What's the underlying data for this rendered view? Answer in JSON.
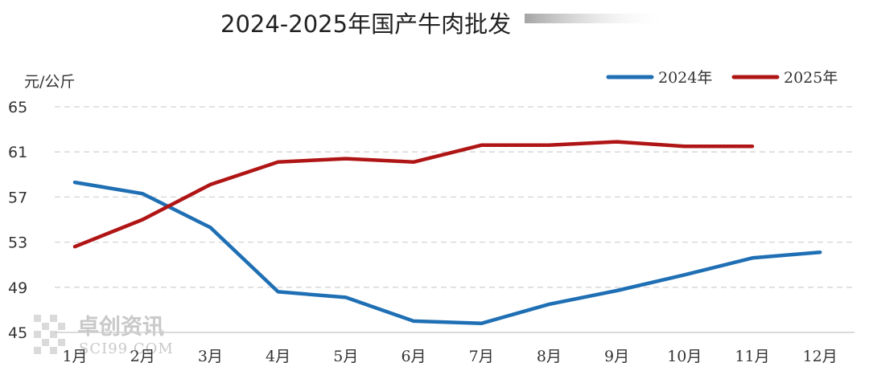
{
  "chart_data": {
    "type": "line",
    "title": "2024-2025年国产牛肉批发",
    "ylabel": "元/公斤",
    "ylim": [
      45,
      65
    ],
    "yticks": [
      45,
      49,
      53,
      57,
      61,
      65
    ],
    "grid": true,
    "legend_position": "top-right",
    "categories": [
      "1月",
      "2月",
      "3月",
      "4月",
      "5月",
      "6月",
      "7月",
      "8月",
      "9月",
      "10月",
      "11月",
      "12月"
    ],
    "series": [
      {
        "name": "2024年",
        "color": "#1f6fb4",
        "values": [
          58.3,
          57.3,
          54.3,
          48.6,
          48.1,
          46.0,
          45.8,
          47.5,
          48.7,
          50.1,
          51.6,
          52.1
        ]
      },
      {
        "name": "2025年",
        "color": "#b01515",
        "values": [
          52.6,
          55.0,
          58.1,
          60.1,
          60.4,
          60.1,
          61.6,
          61.6,
          61.9,
          61.5,
          61.5,
          null
        ]
      }
    ]
  },
  "watermark": {
    "text": "卓创资讯",
    "subtext": "SCI99.COM"
  }
}
